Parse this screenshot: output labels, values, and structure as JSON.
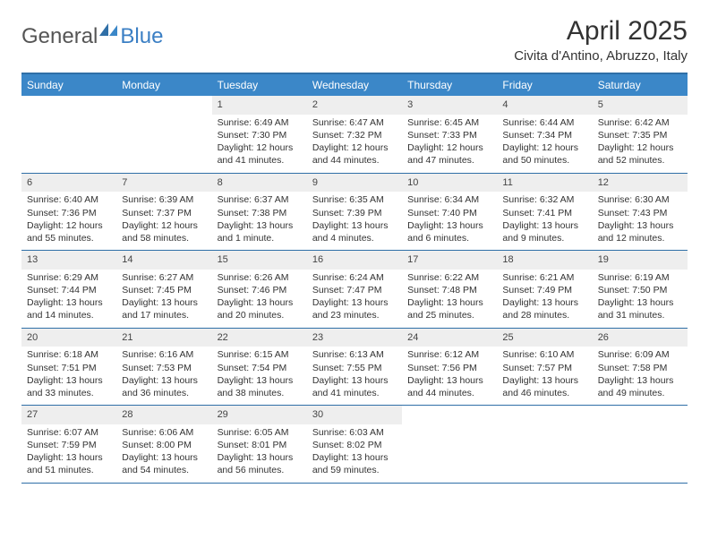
{
  "logo": {
    "part1": "General",
    "part2": "Blue"
  },
  "title": "April 2025",
  "location": "Civita d'Antino, Abruzzo, Italy",
  "colors": {
    "header_bar": "#3b87c8",
    "rule": "#2f6fa7",
    "daynum_bg": "#eeeeee",
    "text": "#333333",
    "logo_gray": "#555555",
    "logo_blue": "#3b7fc4",
    "white": "#ffffff"
  },
  "typography": {
    "title_fontsize": 30,
    "location_fontsize": 15,
    "dow_fontsize": 12,
    "daynum_fontsize": 11,
    "body_fontsize": 10.5
  },
  "dow": [
    "Sunday",
    "Monday",
    "Tuesday",
    "Wednesday",
    "Thursday",
    "Friday",
    "Saturday"
  ],
  "weeks": [
    [
      {
        "empty": true
      },
      {
        "empty": true
      },
      {
        "day": "1",
        "sunrise": "Sunrise: 6:49 AM",
        "sunset": "Sunset: 7:30 PM",
        "daylight1": "Daylight: 12 hours",
        "daylight2": "and 41 minutes."
      },
      {
        "day": "2",
        "sunrise": "Sunrise: 6:47 AM",
        "sunset": "Sunset: 7:32 PM",
        "daylight1": "Daylight: 12 hours",
        "daylight2": "and 44 minutes."
      },
      {
        "day": "3",
        "sunrise": "Sunrise: 6:45 AM",
        "sunset": "Sunset: 7:33 PM",
        "daylight1": "Daylight: 12 hours",
        "daylight2": "and 47 minutes."
      },
      {
        "day": "4",
        "sunrise": "Sunrise: 6:44 AM",
        "sunset": "Sunset: 7:34 PM",
        "daylight1": "Daylight: 12 hours",
        "daylight2": "and 50 minutes."
      },
      {
        "day": "5",
        "sunrise": "Sunrise: 6:42 AM",
        "sunset": "Sunset: 7:35 PM",
        "daylight1": "Daylight: 12 hours",
        "daylight2": "and 52 minutes."
      }
    ],
    [
      {
        "day": "6",
        "sunrise": "Sunrise: 6:40 AM",
        "sunset": "Sunset: 7:36 PM",
        "daylight1": "Daylight: 12 hours",
        "daylight2": "and 55 minutes."
      },
      {
        "day": "7",
        "sunrise": "Sunrise: 6:39 AM",
        "sunset": "Sunset: 7:37 PM",
        "daylight1": "Daylight: 12 hours",
        "daylight2": "and 58 minutes."
      },
      {
        "day": "8",
        "sunrise": "Sunrise: 6:37 AM",
        "sunset": "Sunset: 7:38 PM",
        "daylight1": "Daylight: 13 hours",
        "daylight2": "and 1 minute."
      },
      {
        "day": "9",
        "sunrise": "Sunrise: 6:35 AM",
        "sunset": "Sunset: 7:39 PM",
        "daylight1": "Daylight: 13 hours",
        "daylight2": "and 4 minutes."
      },
      {
        "day": "10",
        "sunrise": "Sunrise: 6:34 AM",
        "sunset": "Sunset: 7:40 PM",
        "daylight1": "Daylight: 13 hours",
        "daylight2": "and 6 minutes."
      },
      {
        "day": "11",
        "sunrise": "Sunrise: 6:32 AM",
        "sunset": "Sunset: 7:41 PM",
        "daylight1": "Daylight: 13 hours",
        "daylight2": "and 9 minutes."
      },
      {
        "day": "12",
        "sunrise": "Sunrise: 6:30 AM",
        "sunset": "Sunset: 7:43 PM",
        "daylight1": "Daylight: 13 hours",
        "daylight2": "and 12 minutes."
      }
    ],
    [
      {
        "day": "13",
        "sunrise": "Sunrise: 6:29 AM",
        "sunset": "Sunset: 7:44 PM",
        "daylight1": "Daylight: 13 hours",
        "daylight2": "and 14 minutes."
      },
      {
        "day": "14",
        "sunrise": "Sunrise: 6:27 AM",
        "sunset": "Sunset: 7:45 PM",
        "daylight1": "Daylight: 13 hours",
        "daylight2": "and 17 minutes."
      },
      {
        "day": "15",
        "sunrise": "Sunrise: 6:26 AM",
        "sunset": "Sunset: 7:46 PM",
        "daylight1": "Daylight: 13 hours",
        "daylight2": "and 20 minutes."
      },
      {
        "day": "16",
        "sunrise": "Sunrise: 6:24 AM",
        "sunset": "Sunset: 7:47 PM",
        "daylight1": "Daylight: 13 hours",
        "daylight2": "and 23 minutes."
      },
      {
        "day": "17",
        "sunrise": "Sunrise: 6:22 AM",
        "sunset": "Sunset: 7:48 PM",
        "daylight1": "Daylight: 13 hours",
        "daylight2": "and 25 minutes."
      },
      {
        "day": "18",
        "sunrise": "Sunrise: 6:21 AM",
        "sunset": "Sunset: 7:49 PM",
        "daylight1": "Daylight: 13 hours",
        "daylight2": "and 28 minutes."
      },
      {
        "day": "19",
        "sunrise": "Sunrise: 6:19 AM",
        "sunset": "Sunset: 7:50 PM",
        "daylight1": "Daylight: 13 hours",
        "daylight2": "and 31 minutes."
      }
    ],
    [
      {
        "day": "20",
        "sunrise": "Sunrise: 6:18 AM",
        "sunset": "Sunset: 7:51 PM",
        "daylight1": "Daylight: 13 hours",
        "daylight2": "and 33 minutes."
      },
      {
        "day": "21",
        "sunrise": "Sunrise: 6:16 AM",
        "sunset": "Sunset: 7:53 PM",
        "daylight1": "Daylight: 13 hours",
        "daylight2": "and 36 minutes."
      },
      {
        "day": "22",
        "sunrise": "Sunrise: 6:15 AM",
        "sunset": "Sunset: 7:54 PM",
        "daylight1": "Daylight: 13 hours",
        "daylight2": "and 38 minutes."
      },
      {
        "day": "23",
        "sunrise": "Sunrise: 6:13 AM",
        "sunset": "Sunset: 7:55 PM",
        "daylight1": "Daylight: 13 hours",
        "daylight2": "and 41 minutes."
      },
      {
        "day": "24",
        "sunrise": "Sunrise: 6:12 AM",
        "sunset": "Sunset: 7:56 PM",
        "daylight1": "Daylight: 13 hours",
        "daylight2": "and 44 minutes."
      },
      {
        "day": "25",
        "sunrise": "Sunrise: 6:10 AM",
        "sunset": "Sunset: 7:57 PM",
        "daylight1": "Daylight: 13 hours",
        "daylight2": "and 46 minutes."
      },
      {
        "day": "26",
        "sunrise": "Sunrise: 6:09 AM",
        "sunset": "Sunset: 7:58 PM",
        "daylight1": "Daylight: 13 hours",
        "daylight2": "and 49 minutes."
      }
    ],
    [
      {
        "day": "27",
        "sunrise": "Sunrise: 6:07 AM",
        "sunset": "Sunset: 7:59 PM",
        "daylight1": "Daylight: 13 hours",
        "daylight2": "and 51 minutes."
      },
      {
        "day": "28",
        "sunrise": "Sunrise: 6:06 AM",
        "sunset": "Sunset: 8:00 PM",
        "daylight1": "Daylight: 13 hours",
        "daylight2": "and 54 minutes."
      },
      {
        "day": "29",
        "sunrise": "Sunrise: 6:05 AM",
        "sunset": "Sunset: 8:01 PM",
        "daylight1": "Daylight: 13 hours",
        "daylight2": "and 56 minutes."
      },
      {
        "day": "30",
        "sunrise": "Sunrise: 6:03 AM",
        "sunset": "Sunset: 8:02 PM",
        "daylight1": "Daylight: 13 hours",
        "daylight2": "and 59 minutes."
      },
      {
        "empty": true
      },
      {
        "empty": true
      },
      {
        "empty": true
      }
    ]
  ]
}
